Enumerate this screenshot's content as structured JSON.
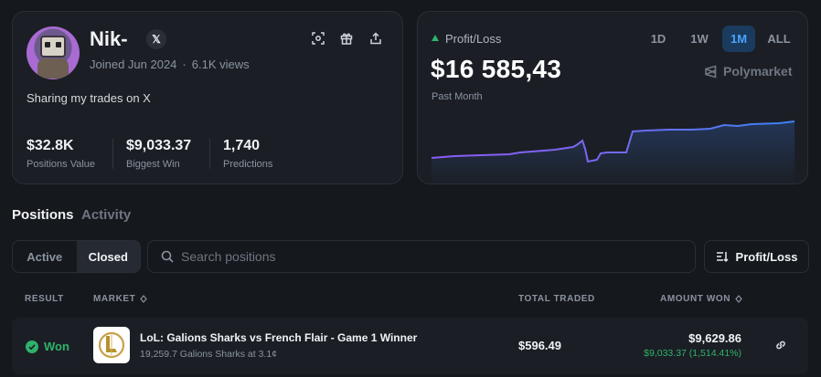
{
  "profile": {
    "username": "Nik-",
    "x_badge": "𝕏",
    "joined": "Joined Jun 2024",
    "separator": "·",
    "views": "6.1K views",
    "bio": "Sharing my trades on X",
    "action_icons": [
      "scan-icon",
      "gift-icon",
      "share-icon"
    ],
    "stats": [
      {
        "value": "$32.8K",
        "label": "Positions Value"
      },
      {
        "value": "$9,033.37",
        "label": "Biggest Win"
      },
      {
        "value": "1,740",
        "label": "Predictions"
      }
    ]
  },
  "pnl": {
    "label": "Profit/Loss",
    "value": "$16 585,43",
    "period": "Past Month",
    "brand": "Polymarket",
    "ranges": [
      "1D",
      "1W",
      "1M",
      "ALL"
    ],
    "active_range": "1M",
    "colors": {
      "up": "#2fb26b",
      "line_start": "#8b5cf6",
      "line_end": "#3b82f6"
    }
  },
  "tabs": {
    "positions": "Positions",
    "activity": "Activity"
  },
  "filters": {
    "active": "Active",
    "closed": "Closed",
    "selected": "Closed",
    "search_placeholder": "Search positions",
    "sort_label": "Profit/Loss"
  },
  "table": {
    "headers": {
      "result": "RESULT",
      "market": "MARKET",
      "total_traded": "TOTAL TRADED",
      "amount_won": "AMOUNT WON"
    },
    "rows": [
      {
        "result": "Won",
        "title": "LoL: Galions Sharks vs French Flair - Game 1 Winner",
        "subtitle": "19,259.7 Galions Sharks at 3.1¢",
        "total_traded": "$596.49",
        "amount_won": "$9,629.86",
        "profit": "$9,033.37 (1,514.41%)"
      }
    ]
  }
}
